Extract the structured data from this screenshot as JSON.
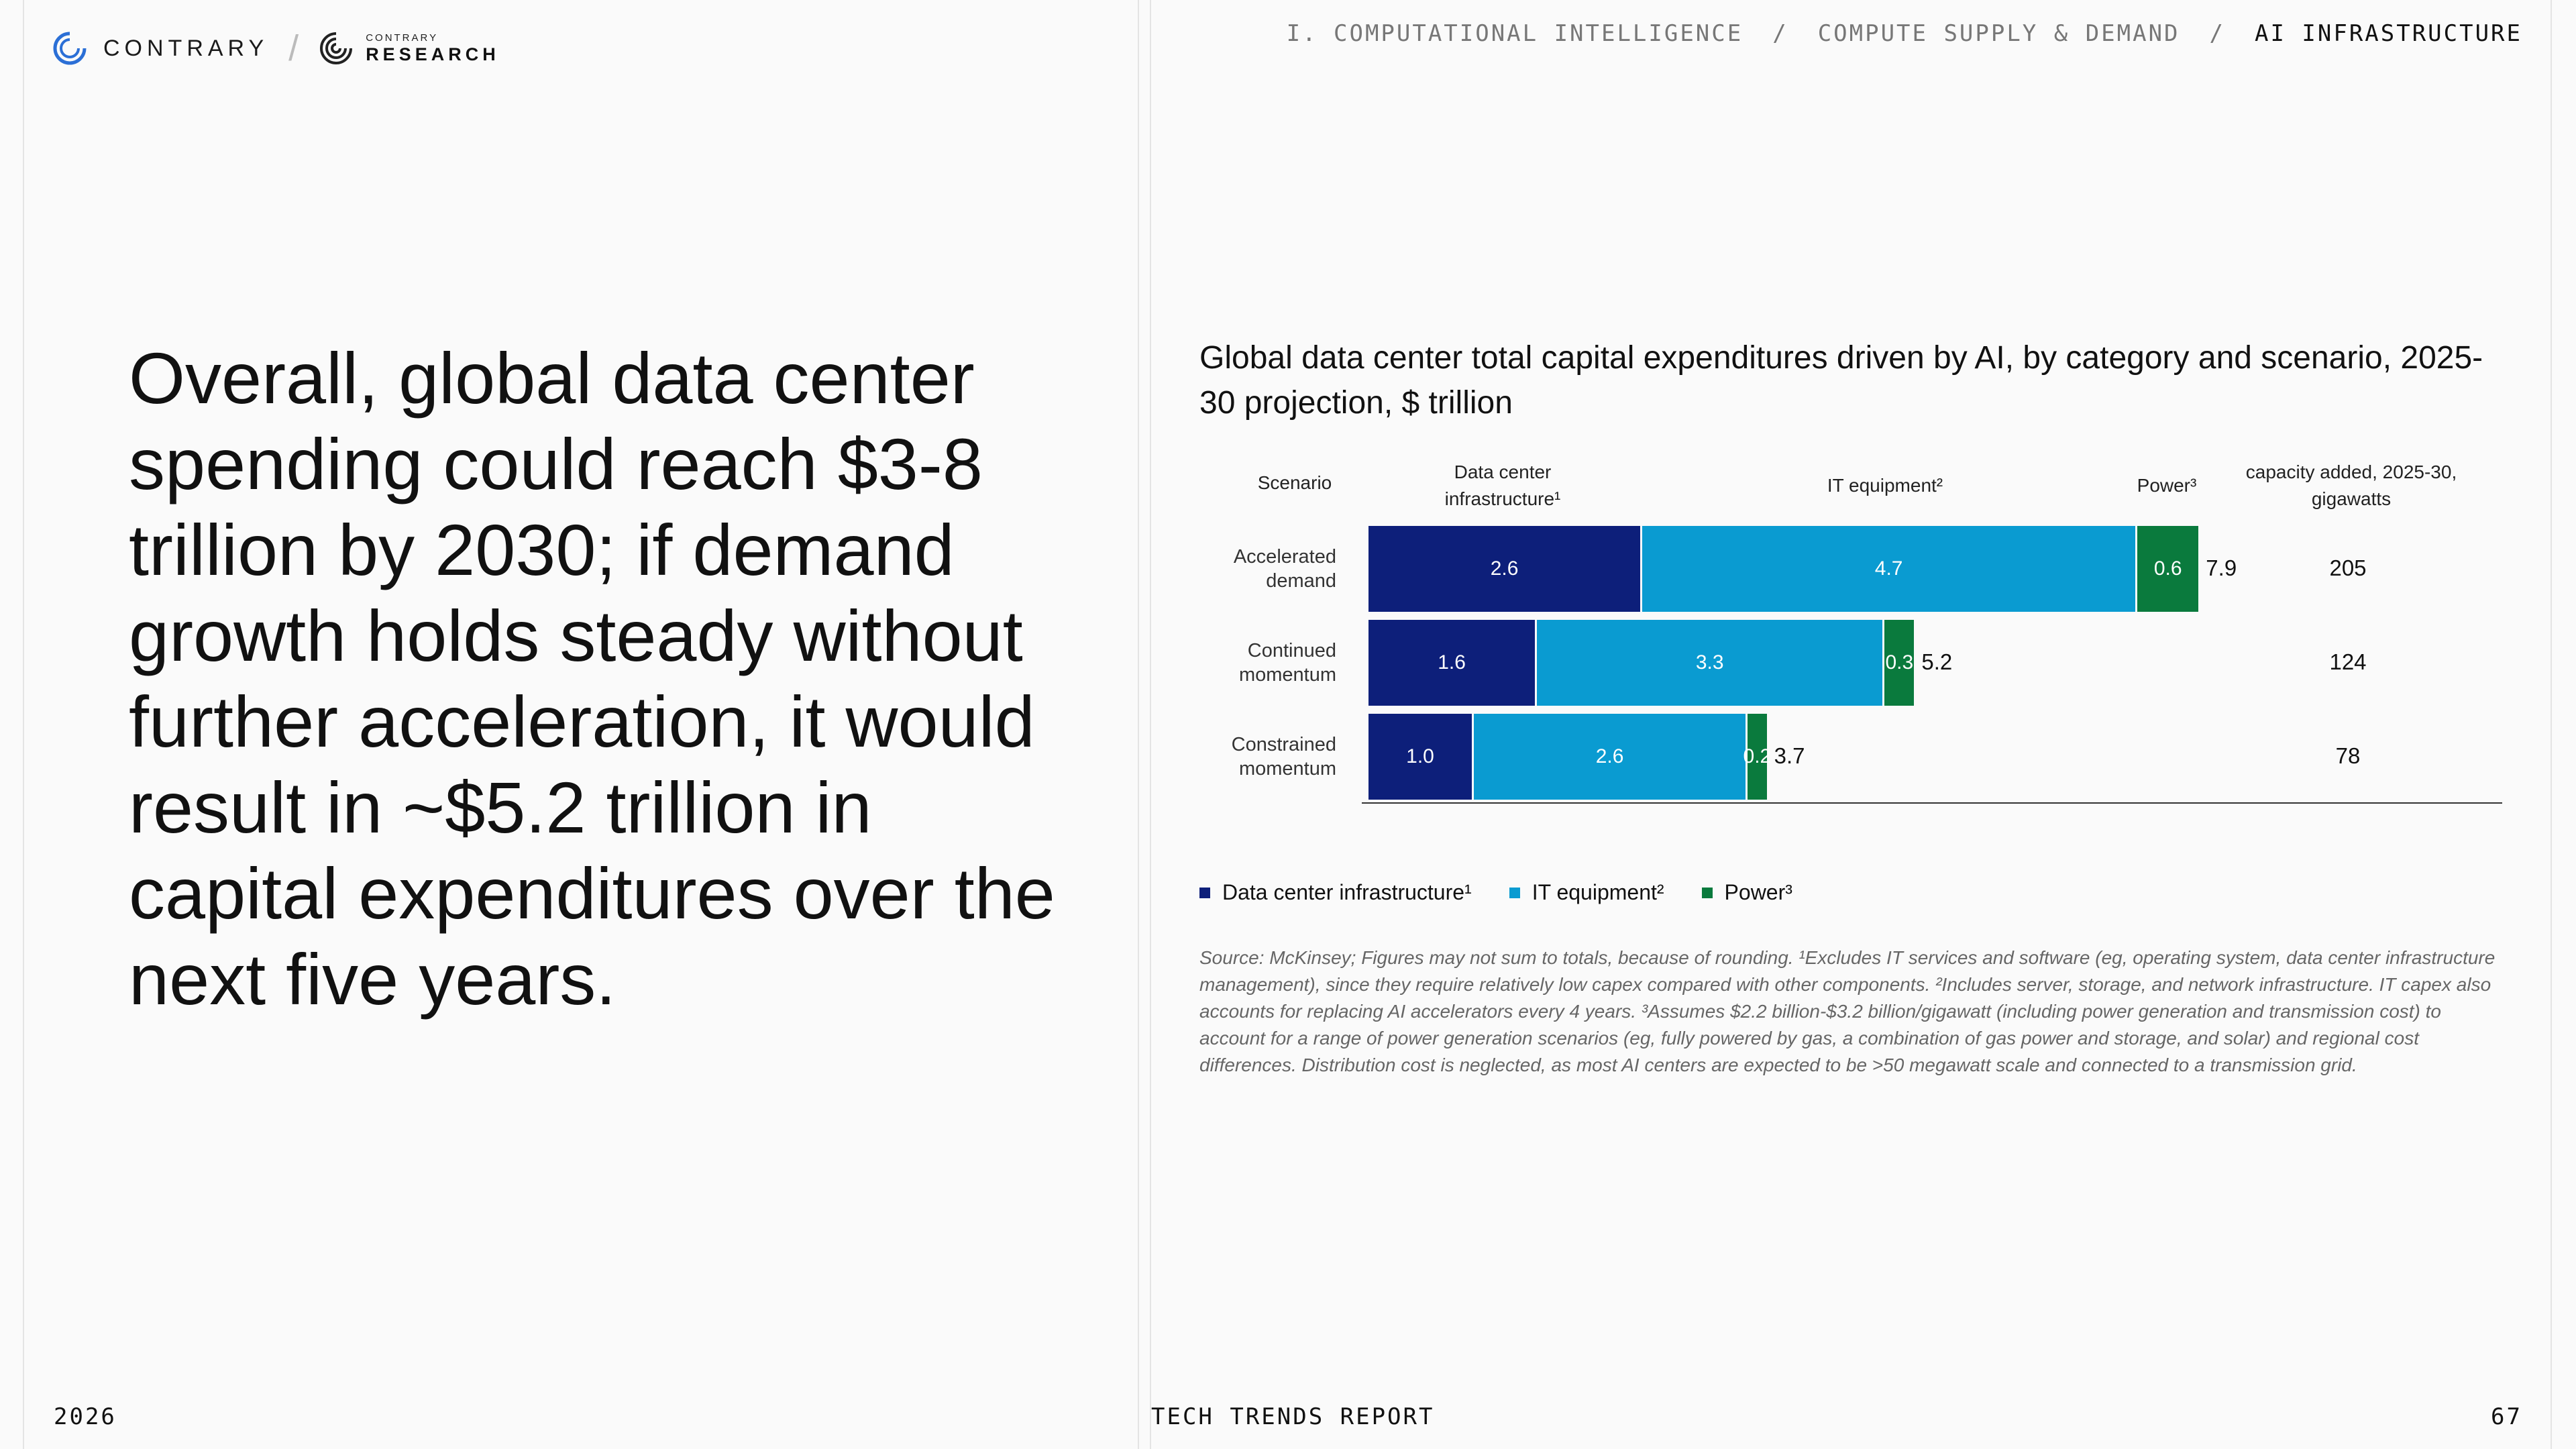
{
  "header": {
    "brand_name": "CONTRARY",
    "brand_slash": "/",
    "research_small": "CONTRARY",
    "research_big": "RESEARCH",
    "breadcrumb": [
      "I. COMPUTATIONAL INTELLIGENCE",
      "COMPUTE SUPPLY & DEMAND",
      "AI INFRASTRUCTURE"
    ],
    "breadcrumb_sep": "/"
  },
  "headline": "Overall, global data center spending could reach $3-8 trillion by 2030; if demand growth holds steady without further acceleration, it would result in ~$5.2 trillion in capital expenditures over the next five years.",
  "chart_data": {
    "type": "bar",
    "orientation": "horizontal",
    "stacked": true,
    "title": "Global data center total capital expenditures driven by AI, by category and scenario, 2025-30 projection, $ trillion",
    "column_headers": {
      "scenario": "Scenario",
      "data_center": "Data center infrastructure¹",
      "it_equipment": "IT equipment²",
      "power": "Power³",
      "capacity": "capacity added, 2025-30, gigawatts"
    },
    "categories": [
      "Accelerated demand",
      "Continued momentum",
      "Constrained momentum"
    ],
    "series": [
      {
        "name": "Data center infrastructure¹",
        "color": "#0d1f7a",
        "values": [
          2.6,
          1.6,
          1.0
        ],
        "labels": [
          "2.6",
          "1.6",
          "1.0"
        ]
      },
      {
        "name": "IT equipment²",
        "color": "#0a9bd1",
        "values": [
          4.7,
          3.3,
          2.6
        ],
        "labels": [
          "4.7",
          "3.3",
          "2.6"
        ]
      },
      {
        "name": "Power³",
        "color": "#0a7a3d",
        "values": [
          0.6,
          0.3,
          0.2
        ],
        "labels": [
          "0.6",
          "0.3",
          "0.2"
        ]
      }
    ],
    "totals": [
      "7.9",
      "5.2",
      "3.7"
    ],
    "capacity_added": [
      "205",
      "124",
      "78"
    ],
    "legend": [
      "Data center infrastructure¹",
      "IT equipment²",
      "Power³"
    ],
    "legend_position": "bottom-left",
    "grid": false
  },
  "source": "Source: McKinsey; Figures may not sum to totals, because of rounding. ¹Excludes IT services and software (eg, operating system, data center infrastructure management), since they require relatively low capex compared with other components. ²Includes server, storage, and network infrastructure. IT capex also accounts for replacing AI accelerators every 4 years. ³Assumes $2.2 billion-$3.2 billion/gigawatt (including power generation and transmission cost) to account for a range of power generation scenarios (eg, fully powered by gas, a combination of gas power and storage, and solar) and regional cost differences. Distribution cost is neglected, as most AI centers are expected to be >50 megawatt scale and connected to a transmission grid.",
  "footer": {
    "year": "2026",
    "report": "TECH TRENDS REPORT",
    "page": "67"
  }
}
